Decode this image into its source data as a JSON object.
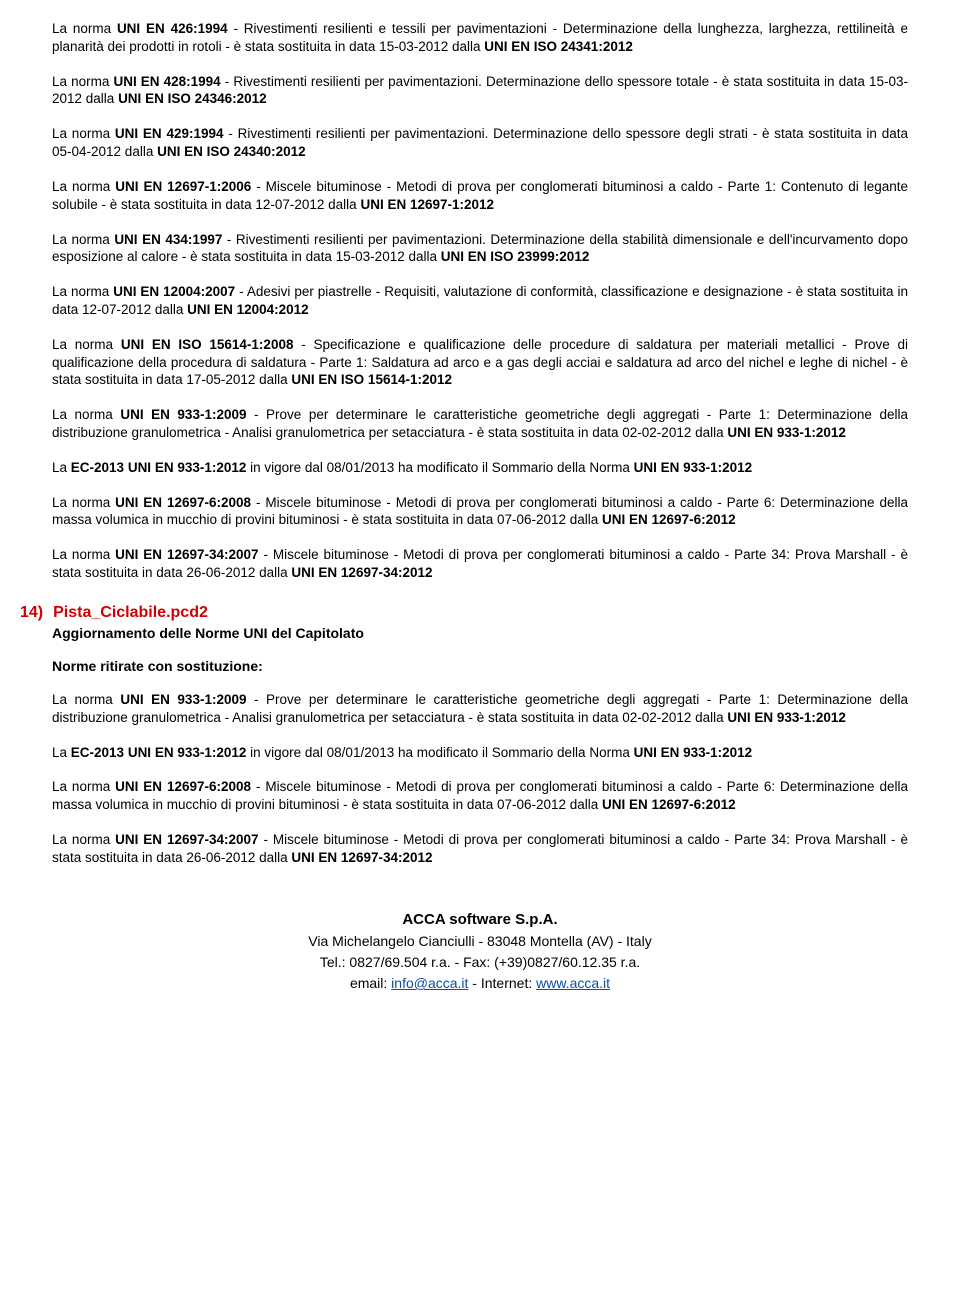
{
  "paragraphs": {
    "p1a": "La norma ",
    "p1b": "UNI EN 426:1994",
    "p1c": " - Rivestimenti resilienti e tessili per pavimentazioni - Determinazione della lunghezza, larghezza, rettilineità e planarità dei prodotti in rotoli - è stata sostituita in data 15-03-2012 dalla ",
    "p1d": "UNI EN ISO 24341:2012",
    "p2a": "La norma ",
    "p2b": "UNI EN 428:1994",
    "p2c": " - Rivestimenti resilienti per pavimentazioni. Determinazione dello spessore totale - è stata sostituita in data 15-03-2012 dalla ",
    "p2d": "UNI EN ISO 24346:2012",
    "p3a": "La norma ",
    "p3b": "UNI EN 429:1994",
    "p3c": " - Rivestimenti resilienti per pavimentazioni. Determinazione dello spessore degli strati - è stata sostituita in data 05-04-2012 dalla ",
    "p3d": "UNI EN ISO 24340:2012",
    "p4a": "La norma ",
    "p4b": "UNI EN 12697-1:2006",
    "p4c": " - Miscele bituminose - Metodi di prova per conglomerati bituminosi a caldo - Parte 1: Contenuto di legante solubile - è stata sostituita in data 12-07-2012 dalla ",
    "p4d": "UNI EN 12697-1:2012",
    "p5a": "La norma ",
    "p5b": "UNI EN 434:1997",
    "p5c": " - Rivestimenti resilienti per pavimentazioni. Determinazione della stabilità dimensionale e dell'incurvamento dopo esposizione al calore - è stata sostituita in data 15-03-2012 dalla ",
    "p5d": "UNI EN ISO 23999:2012",
    "p6a": "La norma ",
    "p6b": "UNI EN 12004:2007",
    "p6c": " - Adesivi per piastrelle - Requisiti, valutazione di conformità, classificazione e designazione - è stata sostituita in data 12-07-2012 dalla ",
    "p6d": "UNI EN 12004:2012",
    "p7a": "La norma ",
    "p7b": "UNI EN ISO 15614-1:2008",
    "p7c": " - Specificazione e qualificazione delle procedure di saldatura per materiali metallici - Prove di qualificazione della procedura di saldatura - Parte 1: Saldatura ad arco e a gas degli acciai e saldatura ad arco del nichel e leghe di nichel - è stata sostituita in data 17-05-2012 dalla ",
    "p7d": "UNI EN ISO 15614-1:2012",
    "p8a": "La norma ",
    "p8b": "UNI EN 933-1:2009",
    "p8c": " - Prove per determinare le caratteristiche geometriche degli aggregati - Parte 1: Determinazione della distribuzione granulometrica - Analisi granulometrica per setacciatura - è stata sostituita in data 02-02-2012 dalla ",
    "p8d": "UNI EN 933-1:2012",
    "p9a": "La ",
    "p9b": "EC-2013 UNI EN 933-1:2012",
    "p9c": " in vigore dal 08/01/2013 ha modificato il Sommario della Norma ",
    "p9d": "UNI EN 933-1:2012",
    "p10a": "La norma ",
    "p10b": "UNI EN 12697-6:2008",
    "p10c": " - Miscele bituminose - Metodi di prova per conglomerati bituminosi a caldo - Parte 6: Determinazione della massa volumica in mucchio di provini bituminosi - è stata sostituita in data 07-06-2012 dalla ",
    "p10d": "UNI EN 12697-6:2012",
    "p11a": "La norma ",
    "p11b": "UNI EN 12697-34:2007",
    "p11c": " - Miscele bituminose - Metodi di prova per conglomerati bituminosi a caldo - Parte 34: Prova Marshall - è stata sostituita in data 26-06-2012 dalla ",
    "p11d": "UNI EN 12697-34:2012"
  },
  "section": {
    "num": "14)",
    "title": "Pista_Ciclabile.pcd2",
    "sub1": "Aggiornamento delle Norme UNI del Capitolato",
    "sub2": "Norme ritirate con sostituzione:"
  },
  "footer": {
    "company": "ACCA software S.p.A.",
    "addr": "Via Michelangelo Cianciulli - 83048 Montella (AV) - Italy",
    "tel": "Tel.: 0827/69.504 r.a. - Fax: (+39)0827/60.12.35 r.a.",
    "emailLabel": "email: ",
    "email": "info@acca.it",
    "sep": " - Internet: ",
    "site": "www.acca.it"
  }
}
